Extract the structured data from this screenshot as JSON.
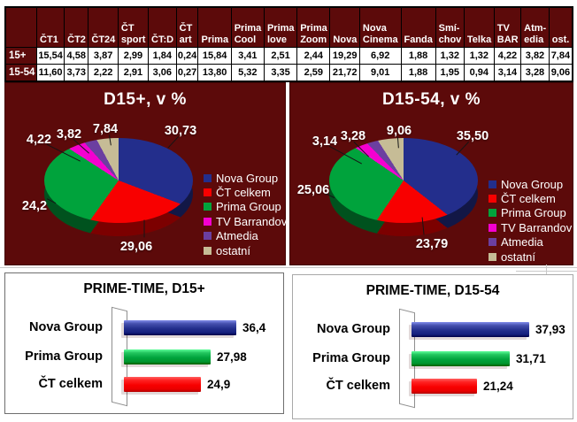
{
  "colors": {
    "background_maroon": "#5C0A0A",
    "navy": "#232E8C",
    "red": "#F80000",
    "green": "#00A33C",
    "magenta": "#F400D0",
    "purple": "#6B3FA0",
    "tan": "#C6BC96"
  },
  "table": {
    "columns": [
      "ČT1",
      "ČT2",
      "ČT24",
      "ČT\nsport",
      "ČT:D",
      "ČT\nart",
      "Prima",
      "Prima\nCool",
      "Prima\nlove",
      "Prima\nZoom",
      "Nova",
      "Nova\nCinema",
      "Fanda",
      "Smí-\nchov",
      "Telka",
      "TV\nBAR",
      "Atm-\nedia",
      "ost."
    ],
    "rows": [
      {
        "label": "15+",
        "values": [
          "15,54",
          "4,58",
          "3,87",
          "2,99",
          "1,84",
          "0,24",
          "15,84",
          "3,41",
          "2,51",
          "2,44",
          "19,29",
          "6,92",
          "1,88",
          "1,32",
          "1,32",
          "4,22",
          "3,82",
          "7,84"
        ]
      },
      {
        "label": "15-54",
        "values": [
          "11,60",
          "3,73",
          "2,22",
          "2,91",
          "3,06",
          "0,27",
          "13,80",
          "5,32",
          "3,35",
          "2,59",
          "21,72",
          "9,01",
          "1,88",
          "1,95",
          "0,94",
          "3,14",
          "3,28",
          "9,06"
        ]
      }
    ]
  },
  "chart_data": [
    {
      "type": "pie",
      "title": "D15+, v %",
      "labels": [
        "Nova Group",
        "ČT celkem",
        "Prima Group",
        "TV Barrandov",
        "Atmedia",
        "ostatní"
      ],
      "values": [
        30.73,
        29.06,
        24.2,
        4.22,
        3.82,
        7.84
      ],
      "values_display": [
        "30,73",
        "29,06",
        "24,2",
        "4,22",
        "3,82",
        "7,84"
      ],
      "colors": [
        "navy",
        "red",
        "green",
        "magenta",
        "purple",
        "tan"
      ],
      "legend_position": "right",
      "style": "3d-pie"
    },
    {
      "type": "pie",
      "title": "D15-54, v %",
      "labels": [
        "Nova Group",
        "ČT celkem",
        "Prima Group",
        "TV Barrandov",
        "Atmedia",
        "ostatní"
      ],
      "values": [
        35.5,
        23.79,
        25.06,
        3.14,
        3.28,
        9.06
      ],
      "values_display": [
        "35,50",
        "23,79",
        "25,06",
        "3,14",
        "3,28",
        "9,06"
      ],
      "colors": [
        "navy",
        "red",
        "green",
        "magenta",
        "purple",
        "tan"
      ],
      "legend_position": "right",
      "style": "3d-pie"
    },
    {
      "type": "bar",
      "title": "PRIME-TIME, D15+",
      "orientation": "horizontal",
      "categories": [
        "Nova Group",
        "Prima Group",
        "ČT celkem"
      ],
      "values": [
        36.4,
        27.98,
        24.9
      ],
      "values_display": [
        "36,4",
        "27,98",
        "24,9"
      ],
      "colors": [
        "navy",
        "green",
        "red"
      ],
      "xlim": [
        0,
        45
      ],
      "grid": false,
      "style": "3d-bar"
    },
    {
      "type": "bar",
      "title": "PRIME-TIME, D15-54",
      "orientation": "horizontal",
      "categories": [
        "Nova Group",
        "Prima Group",
        "ČT celkem"
      ],
      "values": [
        37.93,
        31.71,
        21.24
      ],
      "values_display": [
        "37,93",
        "31,71",
        "21,24"
      ],
      "colors": [
        "navy",
        "green",
        "red"
      ],
      "xlim": [
        0,
        45
      ],
      "grid": false,
      "style": "3d-bar"
    }
  ]
}
